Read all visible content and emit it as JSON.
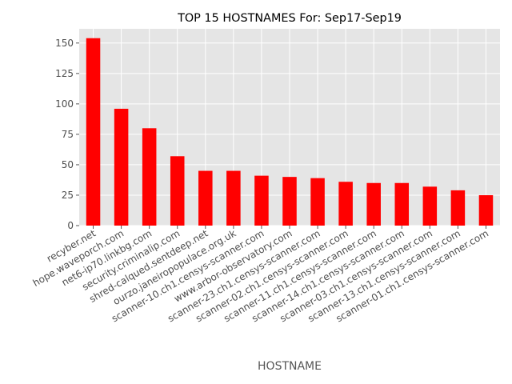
{
  "chart_data": {
    "type": "bar",
    "title": "TOP 15 HOSTNAMES For: Sep17-Sep19",
    "xlabel": "HOSTNAME",
    "ylabel": "",
    "categories": [
      "recyber.net",
      "hope.waveporch.com",
      "net6-ip70.linkbg.com",
      "security.criminalip.com",
      "shred-calqued.sentdeep.net",
      "ourzo.janeiropopulace.org.uk",
      "scanner-10.ch1.censys-scanner.com",
      "www.arbor-observatory.com",
      "scanner-23.ch1.censys-scanner.com",
      "scanner-02.ch1.censys-scanner.com",
      "scanner-11.ch1.censys-scanner.com",
      "scanner-14.ch1.censys-scanner.com",
      "scanner-03.ch1.censys-scanner.com",
      "scanner-13.ch1.censys-scanner.com",
      "scanner-01.ch1.censys-scanner.com"
    ],
    "values": [
      154,
      96,
      80,
      57,
      45,
      45,
      41,
      40,
      39,
      36,
      35,
      35,
      32,
      29,
      25
    ],
    "ylim": [
      0,
      161.7
    ],
    "yticks": [
      0,
      25,
      50,
      75,
      100,
      125,
      150
    ],
    "grid": true,
    "bar_color": "#ff0000",
    "background_color": "#e5e5e5",
    "grid_color": "#ffffff"
  }
}
